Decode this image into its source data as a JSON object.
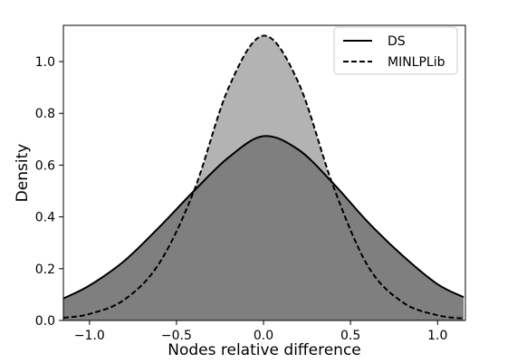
{
  "chart_data": {
    "type": "area",
    "xlabel": "Nodes relative difference",
    "ylabel": "Density",
    "xlim": [
      -1.15,
      1.16
    ],
    "ylim": [
      0,
      1.14
    ],
    "x_ticks": [
      -1.0,
      -0.5,
      0.0,
      0.5,
      1.0
    ],
    "x_tick_labels": [
      "−1.0",
      "−0.5",
      "0.0",
      "0.5",
      "1.0"
    ],
    "y_ticks": [
      0.0,
      0.2,
      0.4,
      0.6,
      0.8,
      1.0
    ],
    "y_tick_labels": [
      "0.0",
      "0.2",
      "0.4",
      "0.6",
      "0.8",
      "1.0"
    ],
    "legend_position": "top-right",
    "series": [
      {
        "name": "DS",
        "linestyle": "solid",
        "x": [
          -1.15,
          -1.0,
          -0.8,
          -0.6,
          -0.4,
          -0.2,
          0.0,
          0.2,
          0.4,
          0.6,
          0.8,
          1.0,
          1.15
        ],
        "y": [
          0.085,
          0.135,
          0.23,
          0.36,
          0.5,
          0.63,
          0.712,
          0.66,
          0.53,
          0.38,
          0.25,
          0.14,
          0.09
        ]
      },
      {
        "name": "MINLPLib",
        "linestyle": "dashed",
        "x": [
          -1.15,
          -1.0,
          -0.8,
          -0.6,
          -0.4,
          -0.2,
          0.0,
          0.2,
          0.4,
          0.6,
          0.8,
          1.0,
          1.15
        ],
        "y": [
          0.01,
          0.025,
          0.08,
          0.22,
          0.5,
          0.9,
          1.1,
          0.92,
          0.52,
          0.21,
          0.07,
          0.02,
          0.008
        ]
      }
    ],
    "colors": {
      "ds_fill": "#7f7f7f",
      "minlplib_fill": "#b3b3b3",
      "line": "#000000",
      "background": "#ffffff"
    }
  }
}
